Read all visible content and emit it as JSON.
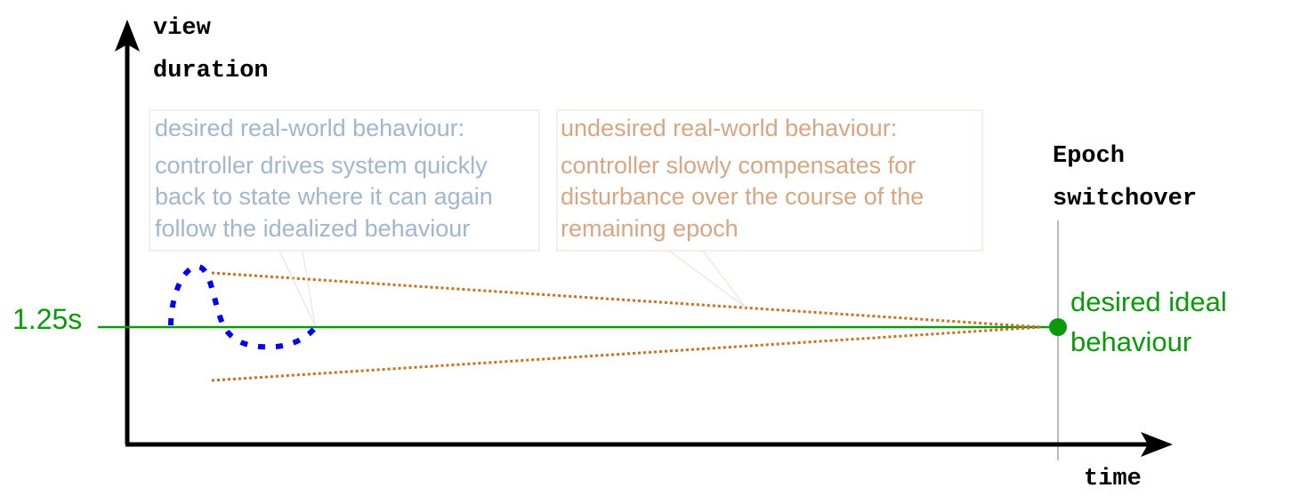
{
  "axes": {
    "y_label_line1": "view",
    "y_label_line2": "duration",
    "x_label": "time",
    "y_tick": "1.25s"
  },
  "epoch": {
    "label_line1": "Epoch",
    "label_line2": "switchover"
  },
  "ideal": {
    "label_line1": "desired ideal",
    "label_line2": "behaviour"
  },
  "desired_box": {
    "line1": "desired real-world behaviour:",
    "line2": "controller drives system quickly",
    "line3": "back to state where it can again",
    "line4": "follow the idealized behaviour"
  },
  "undesired_box": {
    "line1": "undesired real-world behaviour:",
    "line2": "controller slowly compensates for",
    "line3": "disturbance over the course of the",
    "line4": "remaining epoch"
  },
  "colors": {
    "axis": "#000000",
    "ideal_green": "#0a9a0a",
    "desired_text": "#a2b6cf",
    "undesired_text": "#d7a683",
    "desired_curve": "#0000ee",
    "undesired_curve": "#cc6f1e",
    "epoch_line": "#bbbbbb"
  }
}
